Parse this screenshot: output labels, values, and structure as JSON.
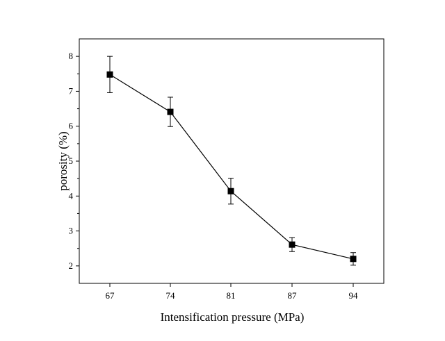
{
  "chart_data": {
    "type": "line",
    "title": "",
    "xlabel": "Intensification pressure (MPa)",
    "ylabel": "porosity (%)",
    "categories": [
      "67",
      "74",
      "81",
      "87",
      "94"
    ],
    "series": [
      {
        "values": [
          7.48,
          6.41,
          4.14,
          2.61,
          2.2
        ],
        "error": [
          0.52,
          0.42,
          0.37,
          0.2,
          0.18
        ],
        "marker": "square",
        "color": "#000000"
      }
    ],
    "ylim": [
      1.5,
      8.5
    ],
    "yticks": [
      2,
      3,
      4,
      5,
      6,
      7,
      8
    ],
    "grid": false,
    "legend": "none"
  }
}
